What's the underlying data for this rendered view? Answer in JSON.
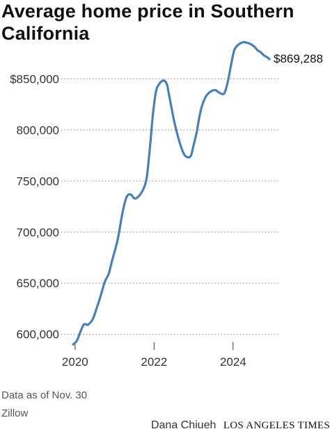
{
  "title": "Average home price in Southern California",
  "end_label": "$869,288",
  "notes": {
    "date": "Data as of Nov. 30",
    "source": "Zillow"
  },
  "credit": {
    "byline": "Dana Chiueh",
    "brand": "LOS ANGELES TIMES"
  },
  "colors": {
    "line": "#4a7fb2",
    "grid": "#9a9a9a",
    "axis": "#333333"
  },
  "chart_data": {
    "type": "line",
    "title": "Average home price in Southern California",
    "xlabel": "",
    "ylabel": "",
    "x_ticks": [
      2020,
      2022,
      2024
    ],
    "x_tick_labels": [
      "2020",
      "2022",
      "2024"
    ],
    "y_ticks": [
      600000,
      650000,
      700000,
      750000,
      800000,
      850000
    ],
    "y_tick_labels": [
      "600,000",
      "650,000",
      "700,000",
      "750,000",
      "800,000",
      "$850,000"
    ],
    "xlim": [
      2019.95,
      2024.92
    ],
    "ylim": [
      593000,
      870000
    ],
    "grid": "horizontal dotted",
    "end_label": "$869,288",
    "series": [
      {
        "x": [
          2019.95,
          2020.05,
          2020.13,
          2020.21,
          2020.25,
          2020.33,
          2020.45,
          2020.55,
          2020.62,
          2020.75,
          2020.85,
          2020.93,
          2021.08,
          2021.2,
          2021.3,
          2021.4,
          2021.5,
          2021.58,
          2021.67,
          2021.75,
          2021.82,
          2021.9,
          2021.97,
          2022.05,
          2022.13,
          2022.21,
          2022.27,
          2022.33,
          2022.37,
          2022.42,
          2022.5,
          2022.58,
          2022.67,
          2022.78,
          2022.92,
          2023.0,
          2023.08,
          2023.12,
          2023.2,
          2023.3,
          2023.38,
          2023.45,
          2023.55,
          2023.67,
          2023.78,
          2023.87,
          2023.95,
          2024.03,
          2024.12,
          2024.2,
          2024.28,
          2024.37,
          2024.45,
          2024.55,
          2024.62,
          2024.7,
          2024.78,
          2024.87,
          2024.92
        ],
        "y": [
          590000,
          594000,
          602000,
          609000,
          610000,
          609500,
          615000,
          626000,
          634000,
          651000,
          659000,
          671000,
          693000,
          719000,
          734000,
          737000,
          733000,
          734000,
          738000,
          744000,
          755000,
          785000,
          815000,
          838000,
          845000,
          848000,
          848000,
          844000,
          836000,
          826000,
          810000,
          797000,
          785000,
          775000,
          774000,
          785000,
          798000,
          807000,
          822000,
          832000,
          836000,
          838000,
          839000,
          836000,
          836000,
          848000,
          864000,
          878000,
          883000,
          885000,
          886000,
          885000,
          884000,
          881000,
          878000,
          876000,
          873000,
          871000,
          869288
        ]
      }
    ]
  }
}
